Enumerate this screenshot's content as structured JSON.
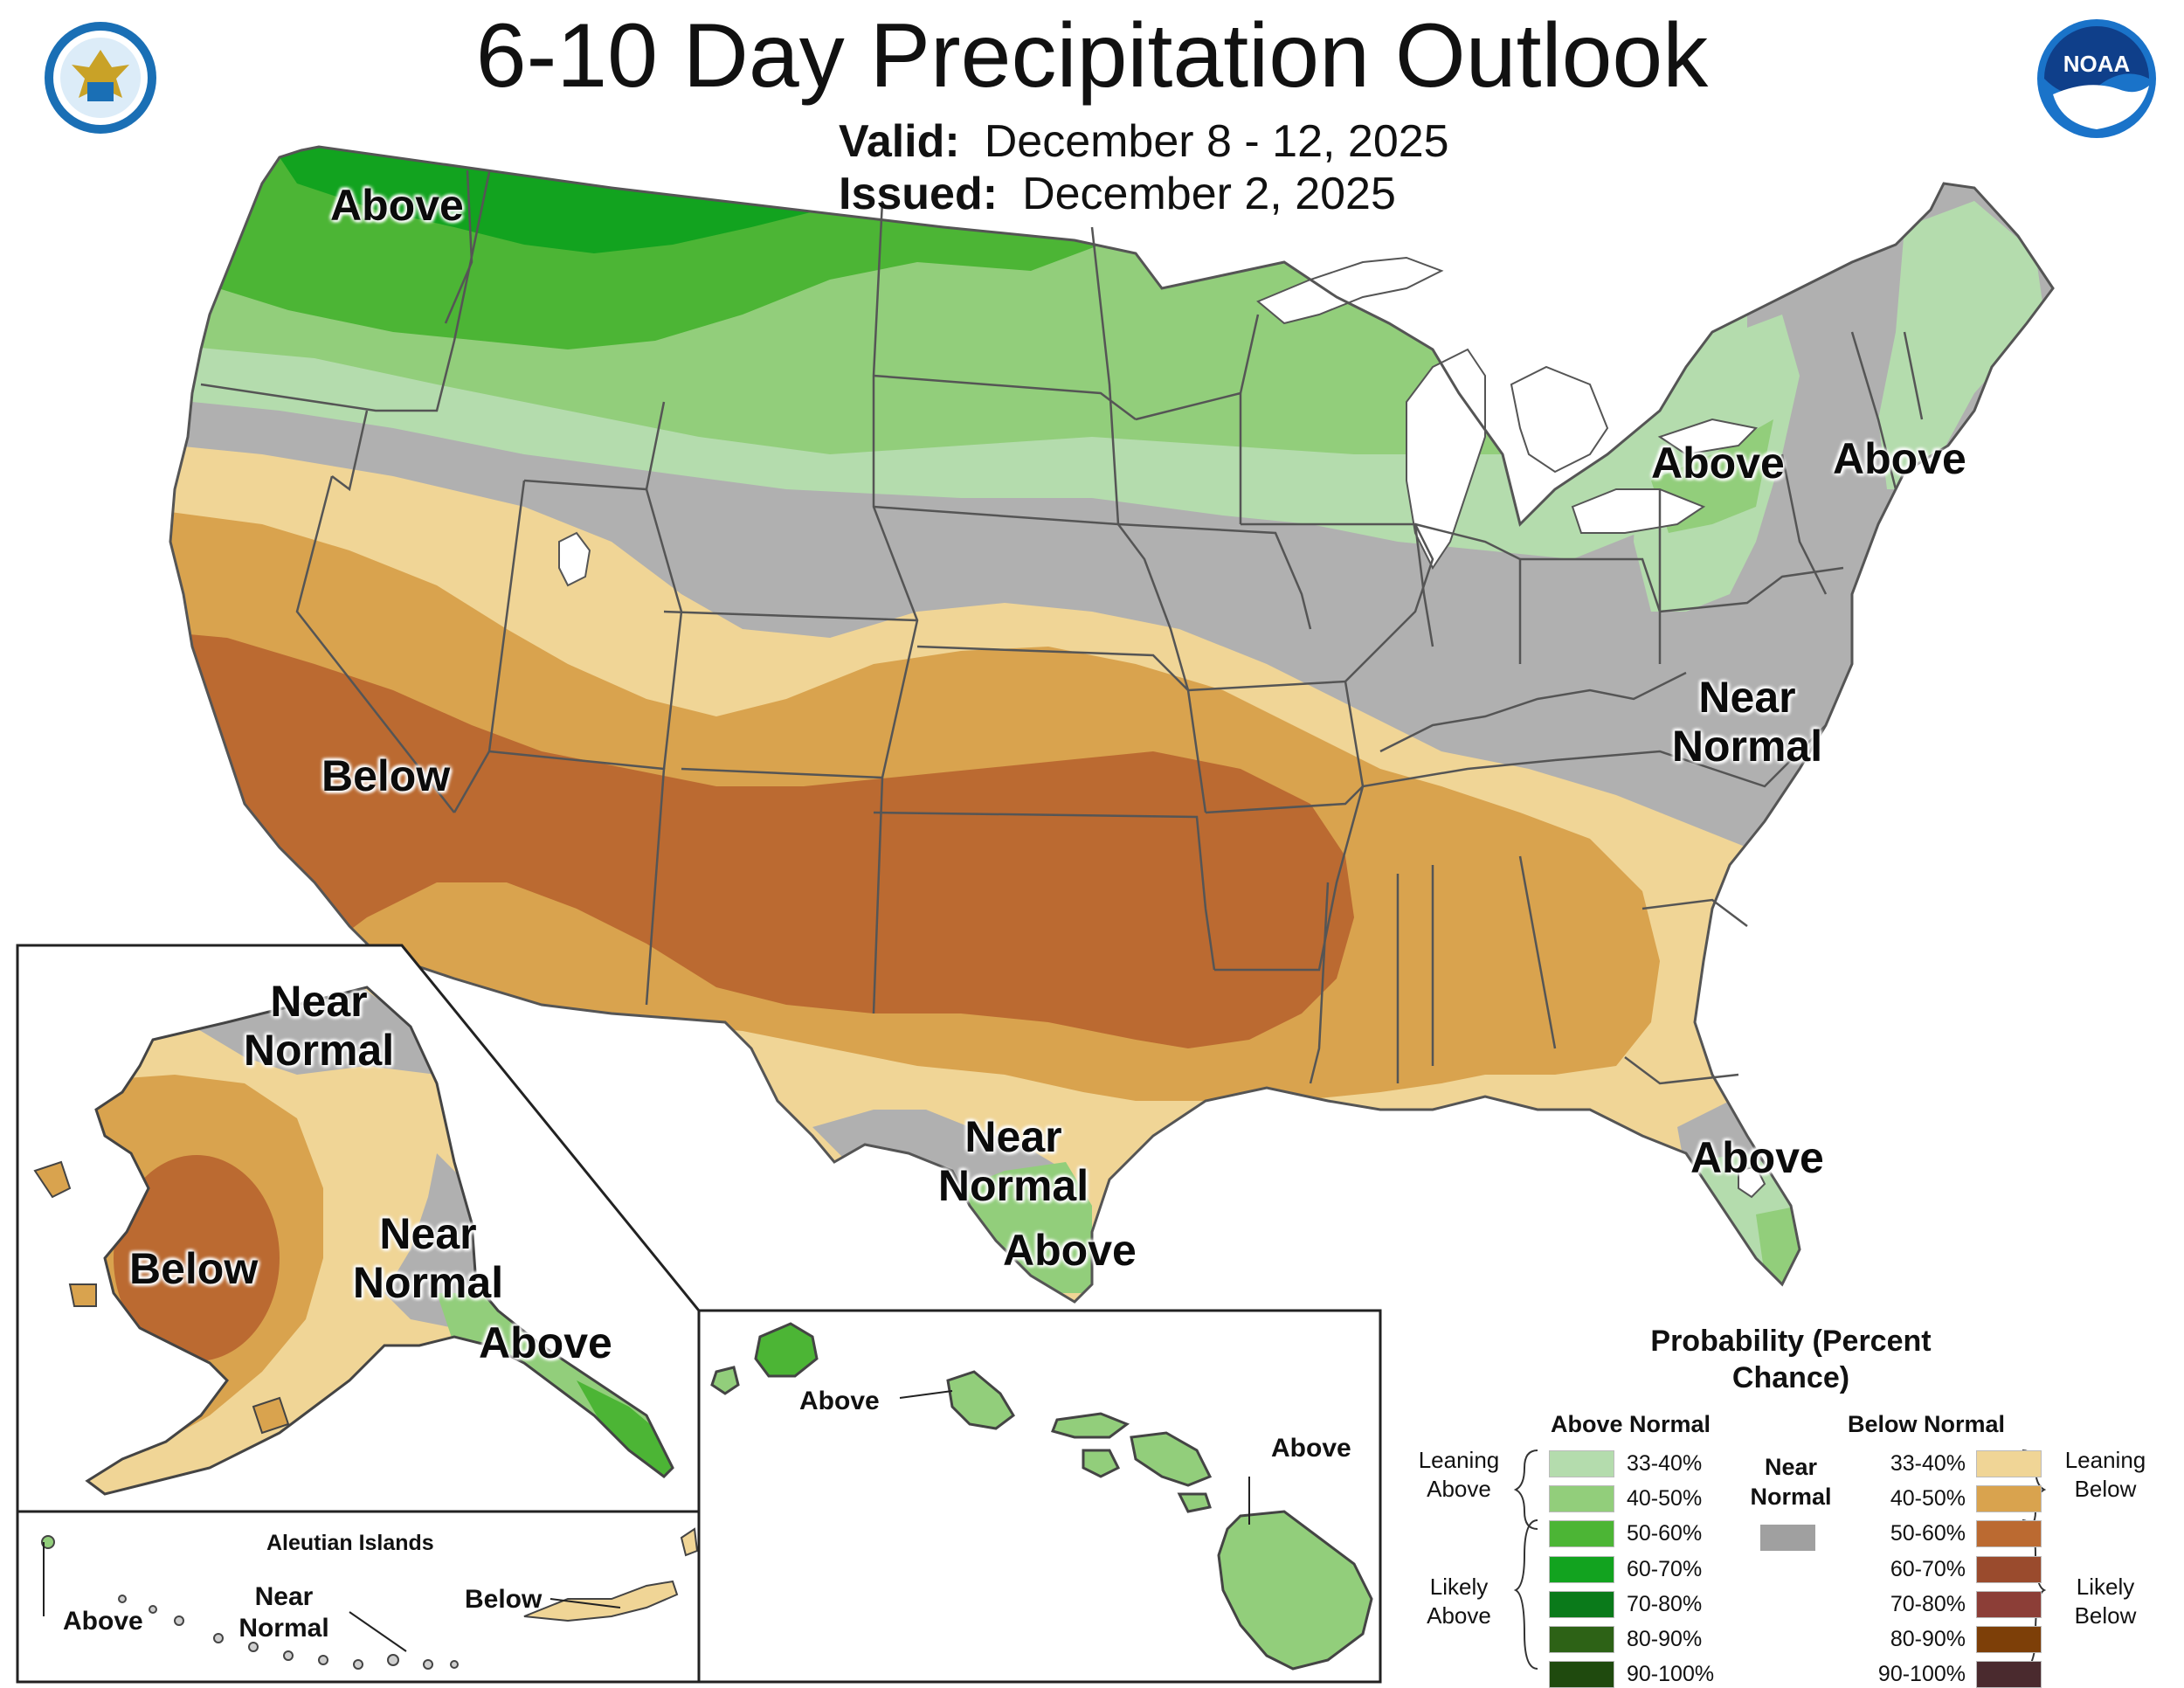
{
  "header": {
    "title": "6-10 Day Precipitation Outlook",
    "valid_label": "Valid:",
    "valid_value": "December 8 - 12, 2025",
    "issued_label": "Issued:",
    "issued_value": "December 2, 2025"
  },
  "logos": {
    "left": "Department of Commerce seal",
    "right": "NOAA"
  },
  "map_labels": {
    "northwest": "Above",
    "ny": "Above",
    "new_england": "Above",
    "southwest": "Below",
    "mid_atlantic": "Near Normal",
    "south_texas_near": "Near Normal",
    "south_texas_above": "Above",
    "florida": "Above",
    "alaska_north": "Near Normal",
    "alaska_below": "Below",
    "alaska_southeast_near": "Near Normal",
    "alaska_panhandle": "Above",
    "hawaii_west": "Above",
    "hawaii_east": "Above",
    "aleutian_title": "Aleutian Islands",
    "aleutian_above": "Above",
    "aleutian_near": "Near Normal",
    "aleutian_below": "Below"
  },
  "legend": {
    "title": "Probability (Percent Chance)",
    "above_head": "Above Normal",
    "below_head": "Below Normal",
    "near_head": "Near Normal",
    "near_color": "#a0a0a0",
    "leaning_above": "Leaning Above",
    "likely_above": "Likely Above",
    "leaning_below": "Leaning Below",
    "likely_below": "Likely Below",
    "above": [
      {
        "label": "33-40%",
        "color": "#b4dcad"
      },
      {
        "label": "40-50%",
        "color": "#92ce7b"
      },
      {
        "label": "50-60%",
        "color": "#4cb535"
      },
      {
        "label": "60-70%",
        "color": "#12a31f"
      },
      {
        "label": "70-80%",
        "color": "#0a7a1a"
      },
      {
        "label": "80-90%",
        "color": "#2d6216"
      },
      {
        "label": "90-100%",
        "color": "#1f4a0e"
      }
    ],
    "below": [
      {
        "label": "33-40%",
        "color": "#f0d596"
      },
      {
        "label": "40-50%",
        "color": "#d9a34e"
      },
      {
        "label": "50-60%",
        "color": "#bb6a31"
      },
      {
        "label": "60-70%",
        "color": "#9a4b2d"
      },
      {
        "label": "70-80%",
        "color": "#8c3e37"
      },
      {
        "label": "80-90%",
        "color": "#7d3f08"
      },
      {
        "label": "90-100%",
        "color": "#4a2a2e"
      }
    ]
  },
  "category_colors": {
    "above_33": "#b4dcad",
    "above_40": "#92ce7b",
    "above_50": "#4cb535",
    "above_60": "#12a31f",
    "below_33": "#f0d596",
    "below_40": "#d9a34e",
    "below_50": "#bb6a31",
    "near_normal": "#b0b0b0",
    "water": "#ffffff",
    "boundary": "#555555"
  }
}
